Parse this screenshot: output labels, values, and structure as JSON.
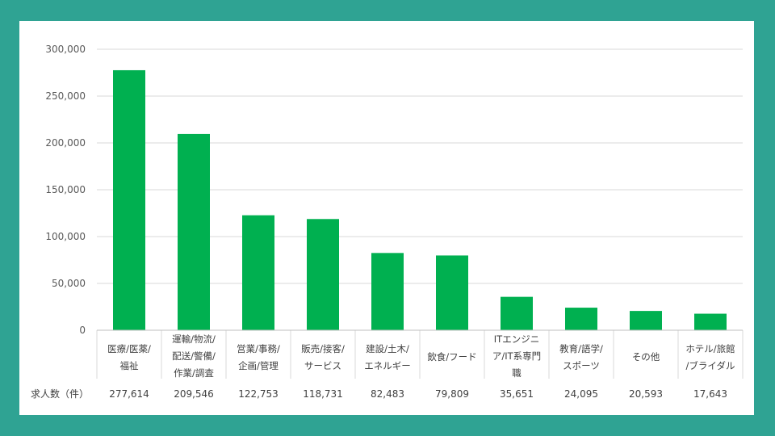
{
  "chart_data": {
    "type": "table",
    "chart_type": "bar",
    "categories": [
      [
        "医療/医薬/",
        "福祉"
      ],
      [
        "運輸/物流/",
        "配送/警備/",
        "作業/調査"
      ],
      [
        "営業/事務/",
        "企画/管理"
      ],
      [
        "販売/接客/",
        "サービス"
      ],
      [
        "建設/土木/",
        "エネルギー"
      ],
      [
        "飲食/フード"
      ],
      [
        "ITエンジニ",
        "ア/IT系専門",
        "職"
      ],
      [
        "教育/語学/",
        "スポーツ"
      ],
      [
        "その他"
      ],
      [
        "ホテル/旅館",
        "/ブライダル"
      ]
    ],
    "series": [
      {
        "name": "求人数（件）",
        "values": [
          277614,
          209546,
          122753,
          118731,
          82483,
          79809,
          35651,
          24095,
          20593,
          17643
        ],
        "labels": [
          "277,614",
          "209,546",
          "122,753",
          "118,731",
          "82,483",
          "79,809",
          "35,651",
          "24,095",
          "20,593",
          "17,643"
        ]
      }
    ],
    "ylim": [
      0,
      300000
    ],
    "yticks": [
      0,
      50000,
      100000,
      150000,
      200000,
      250000,
      300000
    ],
    "ytick_labels": [
      "0",
      "50,000",
      "100,000",
      "150,000",
      "200,000",
      "250,000",
      "300,000"
    ],
    "grid": true,
    "legend": "none",
    "row_label": "求人数（件）",
    "colors": {
      "bar": "#00b050",
      "grid": "#d9d9d9",
      "background": "#2fa393",
      "card": "#ffffff"
    }
  }
}
